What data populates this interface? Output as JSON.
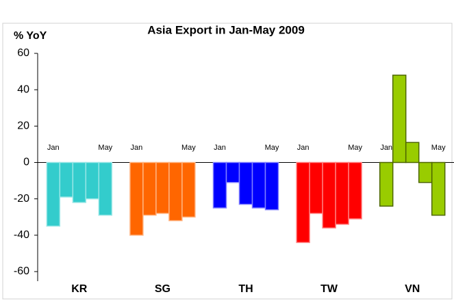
{
  "chart_data": {
    "type": "bar",
    "title": "Asia Export in Jan-May 2009",
    "ylabel": "% YoY",
    "categories": [
      "Jan",
      null,
      null,
      null,
      "May"
    ],
    "series": [
      {
        "name": "KR",
        "color": "#33cccc",
        "values": [
          -35,
          -19,
          -22,
          -20,
          -29
        ]
      },
      {
        "name": "SG",
        "color": "#ff6600",
        "values": [
          -40,
          -29,
          -28,
          -32,
          -30
        ]
      },
      {
        "name": "TH",
        "color": "#0000ff",
        "values": [
          -25,
          -11,
          -23,
          -25,
          -26
        ]
      },
      {
        "name": "TW",
        "color": "#ff0000",
        "values": [
          -44,
          -28,
          -36,
          -34,
          -31
        ]
      },
      {
        "name": "VN",
        "color": "#99cc00",
        "values": [
          -24,
          48,
          11,
          -11,
          -29
        ]
      }
    ],
    "ylim": [
      -60,
      60
    ],
    "yticks": [
      -60,
      -40,
      -20,
      0,
      20,
      40,
      60
    ]
  }
}
